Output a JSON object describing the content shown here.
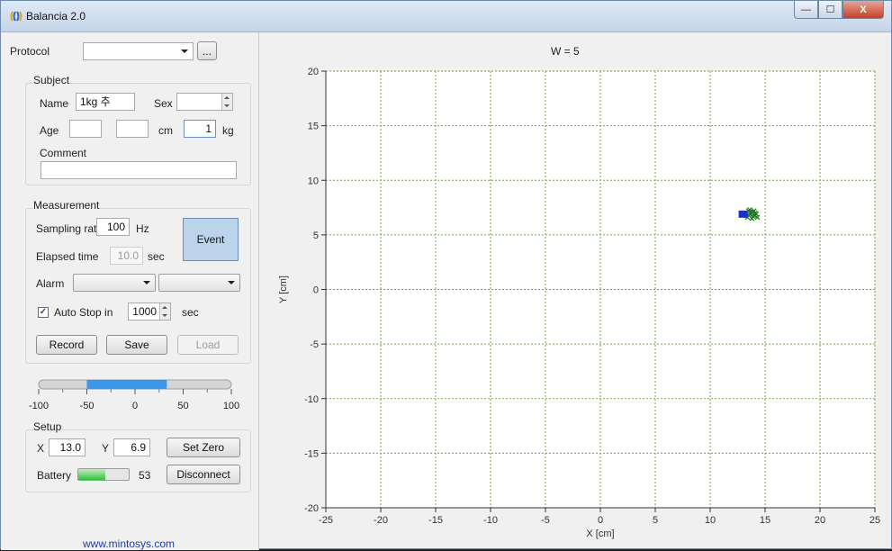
{
  "window": {
    "title": "Balancia 2.0",
    "buttons": {
      "minimize": "—",
      "maximize": "☐",
      "close": "X"
    }
  },
  "protocol": {
    "label": "Protocol",
    "value": "",
    "browse_label": "..."
  },
  "subject": {
    "title": "Subject",
    "name_label": "Name",
    "name_value": "1kg 추",
    "sex_label": "Sex",
    "sex_value": "",
    "age_label": "Age",
    "age_value": "",
    "height_value": "",
    "height_unit": "cm",
    "weight_value": "1",
    "weight_unit": "kg",
    "comment_label": "Comment",
    "comment_value": ""
  },
  "measurement": {
    "title": "Measurement",
    "sampling_label": "Sampling rate",
    "sampling_value": "100",
    "sampling_unit": "Hz",
    "event_label": "Event",
    "elapsed_label": "Elapsed time",
    "elapsed_value": "10.0",
    "elapsed_unit": "sec",
    "alarm_label": "Alarm",
    "alarm_value_1": "",
    "alarm_value_2": "",
    "auto_stop_checked": true,
    "auto_stop_label": "Auto Stop in",
    "auto_stop_value": "1000",
    "auto_stop_unit": "sec",
    "record_label": "Record",
    "save_label": "Save",
    "load_label": "Load"
  },
  "range_slider": {
    "ticks": [
      "-100",
      "-50",
      "0",
      "50",
      "100"
    ],
    "min": -100,
    "max": 100,
    "low": -50,
    "high": 33,
    "color": "#3d97e8"
  },
  "setup": {
    "title": "Setup",
    "x_label": "X",
    "x_value": "13.0",
    "y_label": "Y",
    "y_value": "6.9",
    "set_zero_label": "Set Zero",
    "battery_label": "Battery",
    "battery_value": "53",
    "battery_fraction": 0.53,
    "disconnect_label": "Disconnect"
  },
  "footer_link": "www.mintosys.com",
  "plot_header": "W = 5",
  "chart_data": {
    "type": "scatter",
    "title": "W = 5",
    "xlabel": "X [cm]",
    "ylabel": "Y [cm]",
    "xlim": [
      -25,
      25
    ],
    "ylim": [
      -20,
      20
    ],
    "xticks": [
      -25,
      -20,
      -15,
      -10,
      -5,
      0,
      5,
      10,
      15,
      20,
      25
    ],
    "yticks": [
      -20,
      -15,
      -10,
      -5,
      0,
      5,
      10,
      15,
      20
    ],
    "grid": true,
    "grid_color": "#7aa64a",
    "marker_point": {
      "x": 13.0,
      "y": 6.9,
      "color": "#1a2fd0"
    },
    "trace_color": "#1f7a1f",
    "trace_points": [
      [
        13.3,
        7.0
      ],
      [
        13.5,
        6.8
      ],
      [
        13.7,
        7.1
      ],
      [
        13.9,
        6.7
      ],
      [
        14.1,
        7.0
      ],
      [
        13.6,
        7.3
      ],
      [
        13.8,
        6.5
      ],
      [
        14.0,
        7.2
      ],
      [
        13.4,
        6.6
      ],
      [
        14.2,
        6.9
      ],
      [
        13.6,
        6.9
      ],
      [
        13.9,
        7.1
      ],
      [
        14.3,
        6.6
      ],
      [
        13.5,
        7.2
      ],
      [
        14.0,
        6.8
      ]
    ]
  }
}
